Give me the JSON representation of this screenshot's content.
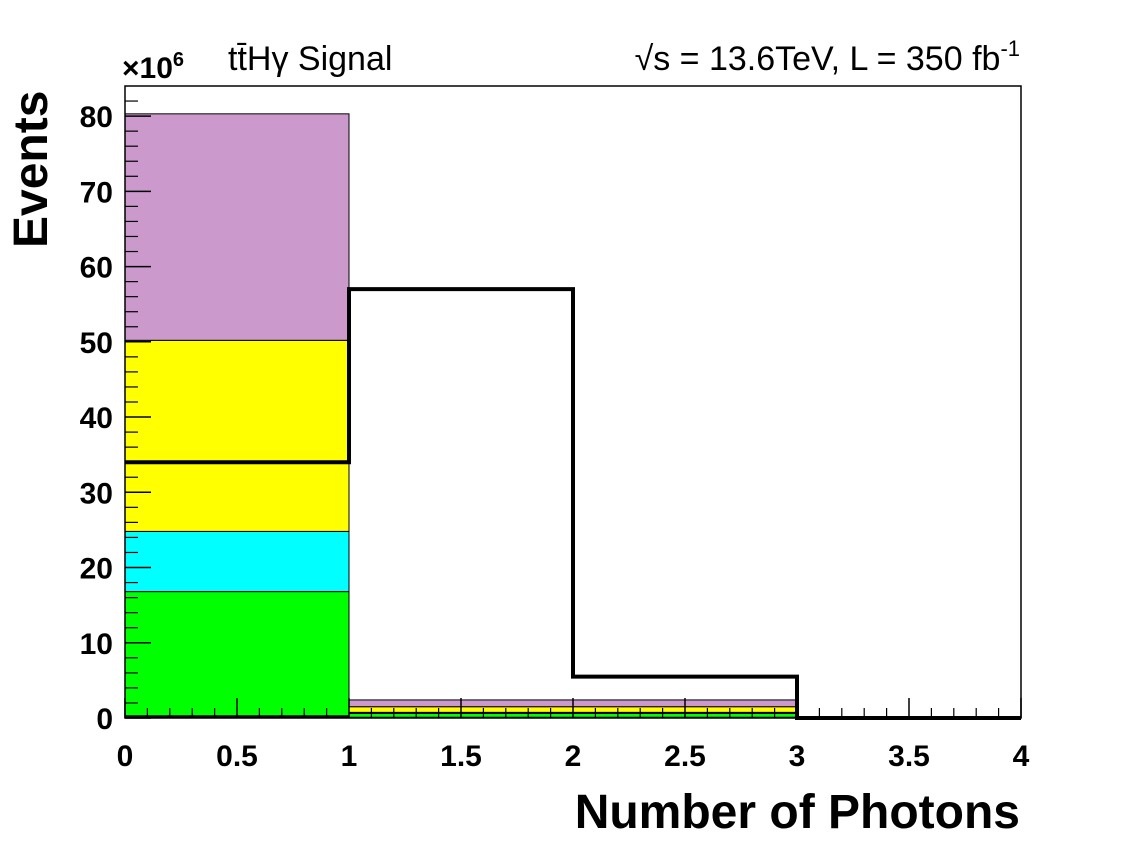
{
  "chart_data": {
    "type": "bar",
    "bin_edges": [
      0,
      1,
      2,
      3,
      4
    ],
    "stacked_series": [
      {
        "color": "#000000",
        "values": [
          0.3,
          0.1,
          0.1,
          0
        ]
      },
      {
        "color": "#00ff00",
        "values": [
          16.5,
          0.5,
          0.5,
          0
        ]
      },
      {
        "color": "#00ffff",
        "values": [
          8.0,
          0.15,
          0.15,
          0
        ]
      },
      {
        "color": "#ffff00",
        "values": [
          25.4,
          0.75,
          0.75,
          0
        ]
      },
      {
        "color": "#cc99cc",
        "values": [
          30.1,
          0.9,
          0.9,
          0
        ]
      }
    ],
    "signal_series": {
      "color": "#000000",
      "values": [
        34.0,
        57.0,
        5.5,
        0
      ]
    },
    "xlabel": "Number of Photons",
    "ylabel": "Events",
    "y_exponent_base": "×10",
    "y_exponent_power": "6",
    "process_label": "tt̄Hγ Signal",
    "energy_label": "√s = 13.6TeV, L = 350 fb",
    "lumi_unit_power": "-1",
    "xlim": [
      0,
      4
    ],
    "ylim": [
      0,
      84
    ],
    "x_ticks": [
      "0",
      "0.5",
      "1",
      "1.5",
      "2",
      "2.5",
      "3",
      "3.5",
      "4"
    ],
    "y_ticks": [
      "0",
      "10",
      "20",
      "30",
      "40",
      "50",
      "60",
      "70",
      "80"
    ],
    "grid": false
  }
}
